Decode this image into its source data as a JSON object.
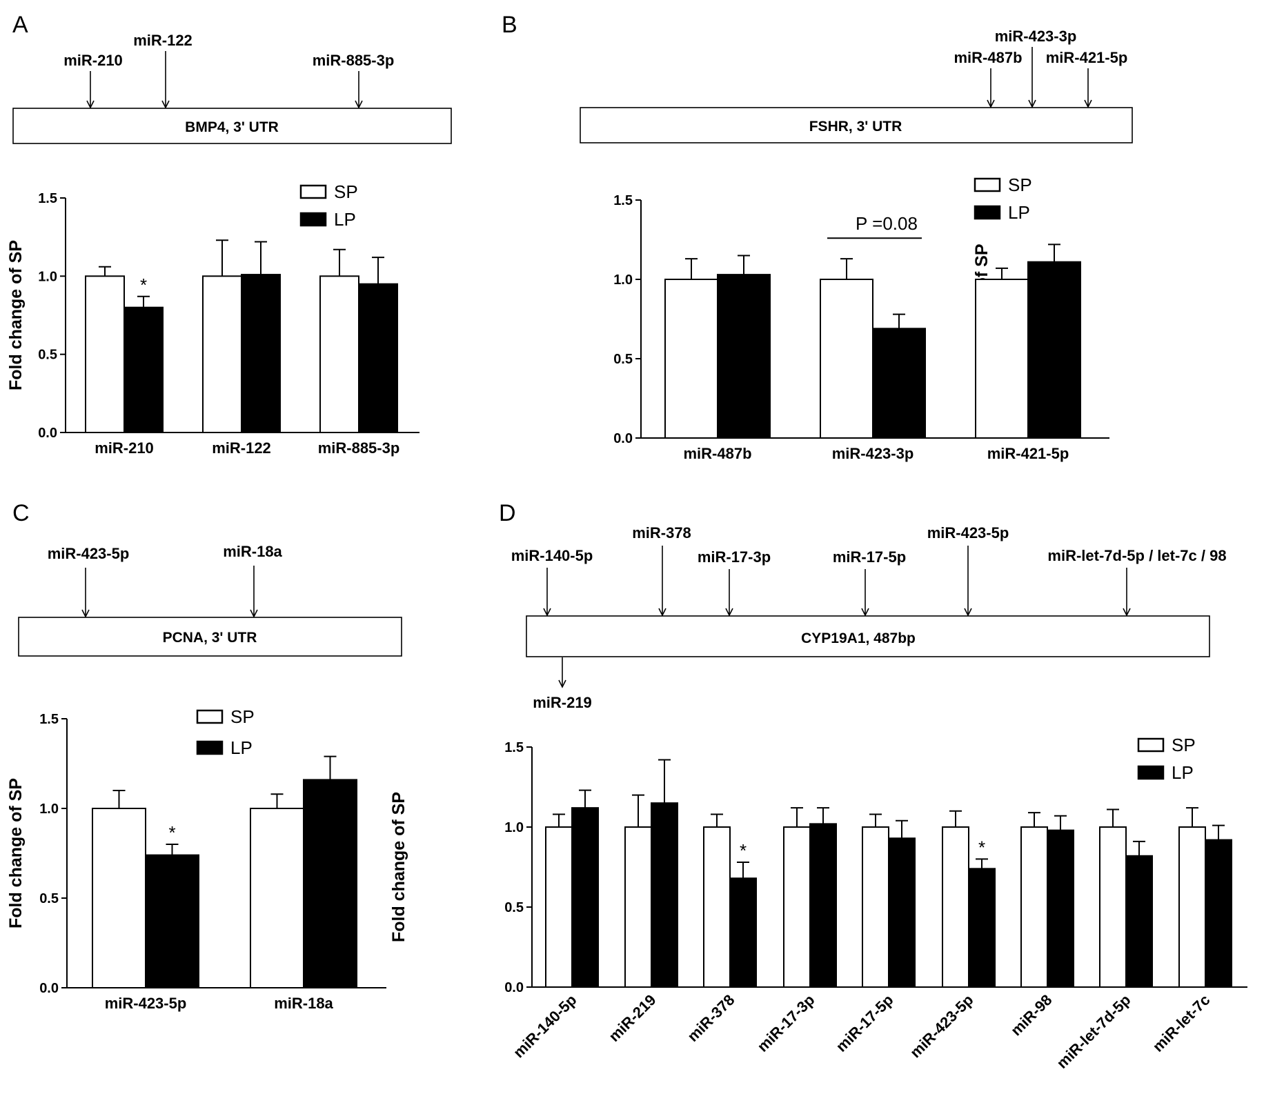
{
  "panels": {
    "A": {
      "letter": "A",
      "gene": "BMP4, 3' UTR",
      "sites": [
        "miR-210",
        "miR-122",
        "miR-885-3p"
      ],
      "sites_below": []
    },
    "B": {
      "letter": "B",
      "gene": "FSHR, 3' UTR",
      "sites": [
        "miR-487b",
        "miR-423-3p",
        "miR-421-5p"
      ],
      "sites_below": []
    },
    "C": {
      "letter": "C",
      "gene": "PCNA, 3' UTR",
      "sites": [
        "miR-423-5p",
        "miR-18a"
      ],
      "sites_below": []
    },
    "D": {
      "letter": "D",
      "gene": "CYP19A1, 487bp",
      "sites": [
        "miR-140-5p",
        "miR-378",
        "miR-17-3p",
        "miR-17-5p",
        "miR-423-5p",
        "miR-let-7d-5p / let-7c / 98"
      ],
      "sites_below": [
        "miR-219"
      ]
    }
  },
  "colors": {
    "SP": "#ffffff",
    "LP": "#000000",
    "axis": "#000000"
  },
  "chart_data": [
    {
      "panel": "A",
      "type": "bar",
      "ylabel": "Fold change of SP",
      "ylim": [
        0,
        1.5
      ],
      "yticks": [
        "0.0",
        "0.5",
        "1.0",
        "1.5"
      ],
      "legend": [
        "SP",
        "LP"
      ],
      "legend_position": "top-right",
      "categories": [
        "miR-210",
        "miR-122",
        "miR-885-3p"
      ],
      "series": [
        {
          "name": "SP",
          "values": [
            1.0,
            1.0,
            1.0
          ],
          "errors": [
            0.06,
            0.23,
            0.17
          ]
        },
        {
          "name": "LP",
          "values": [
            0.8,
            1.01,
            0.95
          ],
          "errors": [
            0.07,
            0.21,
            0.17
          ]
        }
      ],
      "annotations": [
        {
          "category": "miR-210",
          "series": "LP",
          "text": "*"
        }
      ],
      "bracket": null
    },
    {
      "panel": "B",
      "type": "bar",
      "ylabel": "Fold change of SP",
      "ylim": [
        0,
        1.5
      ],
      "yticks": [
        "0.0",
        "0.5",
        "1.0",
        "1.5"
      ],
      "legend": [
        "SP",
        "LP"
      ],
      "legend_position": "top-right",
      "categories": [
        "miR-487b",
        "miR-423-3p",
        "miR-421-5p"
      ],
      "series": [
        {
          "name": "SP",
          "values": [
            1.0,
            1.0,
            1.0
          ],
          "errors": [
            0.13,
            0.13,
            0.07
          ]
        },
        {
          "name": "LP",
          "values": [
            1.03,
            0.69,
            1.11
          ],
          "errors": [
            0.12,
            0.09,
            0.11
          ]
        }
      ],
      "annotations": [],
      "bracket": {
        "category": "miR-423-3p",
        "label": "P =0.08",
        "y": 1.26
      }
    },
    {
      "panel": "C",
      "type": "bar",
      "ylabel": "Fold change of SP",
      "ylim": [
        0,
        1.5
      ],
      "yticks": [
        "0.0",
        "0.5",
        "1.0",
        "1.5"
      ],
      "legend": [
        "SP",
        "LP"
      ],
      "legend_position": "top-right",
      "categories": [
        "miR-423-5p",
        "miR-18a"
      ],
      "series": [
        {
          "name": "SP",
          "values": [
            1.0,
            1.0
          ],
          "errors": [
            0.1,
            0.08
          ]
        },
        {
          "name": "LP",
          "values": [
            0.74,
            1.16
          ],
          "errors": [
            0.06,
            0.13
          ]
        }
      ],
      "annotations": [
        {
          "category": "miR-423-5p",
          "series": "LP",
          "text": "*"
        }
      ],
      "bracket": null
    },
    {
      "panel": "D",
      "type": "bar",
      "ylabel": "Fold change of SP",
      "ylim": [
        0,
        1.5
      ],
      "yticks": [
        "0.0",
        "0.5",
        "1.0",
        "1.5"
      ],
      "legend": [
        "SP",
        "LP"
      ],
      "legend_position": "top-right",
      "categories": [
        "miR-140-5p",
        "miR-219",
        "miR-378",
        "miR-17-3p",
        "miR-17-5p",
        "miR-423-5p",
        "miR-98",
        "miR-let-7d-5p",
        "miR-let-7c"
      ],
      "series": [
        {
          "name": "SP",
          "values": [
            1.0,
            1.0,
            1.0,
            1.0,
            1.0,
            1.0,
            1.0,
            1.0,
            1.0
          ],
          "errors": [
            0.08,
            0.2,
            0.08,
            0.12,
            0.08,
            0.1,
            0.09,
            0.11,
            0.12
          ]
        },
        {
          "name": "LP",
          "values": [
            1.12,
            1.15,
            0.68,
            1.02,
            0.93,
            0.74,
            0.98,
            0.82,
            0.92
          ],
          "errors": [
            0.11,
            0.27,
            0.1,
            0.1,
            0.11,
            0.06,
            0.09,
            0.09,
            0.09
          ]
        }
      ],
      "annotations": [
        {
          "category": "miR-378",
          "series": "LP",
          "text": "*"
        },
        {
          "category": "miR-423-5p",
          "series": "LP",
          "text": "*"
        }
      ],
      "bracket": null
    }
  ]
}
